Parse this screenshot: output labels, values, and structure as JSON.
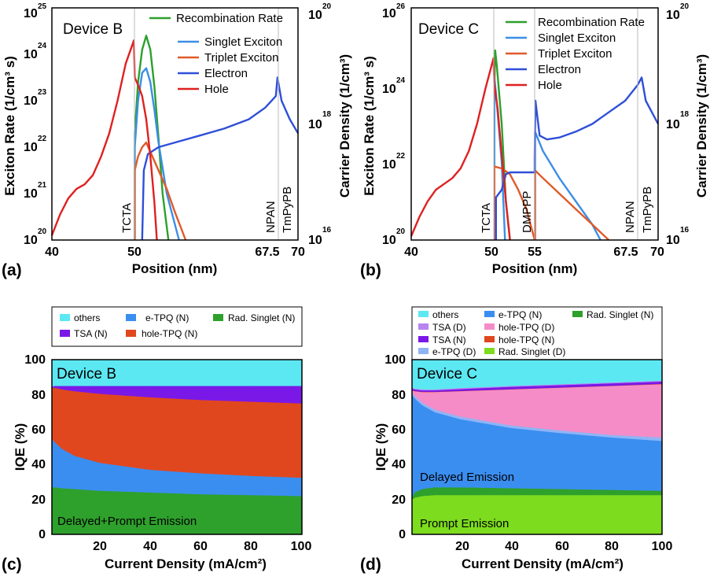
{
  "chart_data": [
    {
      "panel": "(a)",
      "type": "line",
      "title": "Device B",
      "xlabel": "Position (nm)",
      "ylabel_left": "Exciton Rate (1/cm³ s)",
      "ylabel_right": "Carrier Density (1/cm³)",
      "x_ticks": [
        "40",
        "50",
        "67.5",
        "70"
      ],
      "y_left_ticks": [
        {
          "base": "10",
          "exp": "20"
        },
        {
          "base": "10",
          "exp": "21"
        },
        {
          "base": "10",
          "exp": "22"
        },
        {
          "base": "10",
          "exp": "23"
        },
        {
          "base": "10",
          "exp": "24"
        },
        {
          "base": "10",
          "exp": "25"
        }
      ],
      "y_right_ticks": [
        {
          "base": "10",
          "exp": "16"
        },
        {
          "base": "10",
          "exp": "18"
        },
        {
          "base": "10",
          "exp": "20"
        }
      ],
      "layer_labels": [
        "TCTA",
        "NPAN",
        "TmPyPB"
      ],
      "legend": [
        "Recombination Rate",
        "Singlet Exciton",
        "Triplet Exciton",
        "Electron",
        "Hole"
      ],
      "series": [
        {
          "name": "Recombination Rate",
          "color": "#2ca02c",
          "points": [
            [
              50.1,
              20
            ],
            [
              50.1,
              22.3
            ],
            [
              50.5,
              23.4
            ],
            [
              51,
              24.1
            ],
            [
              51.5,
              24.4
            ],
            [
              52,
              24.1
            ],
            [
              52.5,
              23.3
            ],
            [
              53,
              22.2
            ],
            [
              53.5,
              21
            ],
            [
              54.2,
              20
            ]
          ]
        },
        {
          "name": "Singlet Exciton",
          "color": "#3b8ee6",
          "points": [
            [
              50.1,
              20
            ],
            [
              50.1,
              22
            ],
            [
              50.5,
              23
            ],
            [
              51,
              23.6
            ],
            [
              51.5,
              23.7
            ],
            [
              52,
              23.4
            ],
            [
              52.5,
              22.8
            ],
            [
              53,
              22.1
            ],
            [
              54,
              21
            ],
            [
              55.5,
              20
            ]
          ]
        },
        {
          "name": "Triplet Exciton",
          "color": "#e05a2a",
          "points": [
            [
              50.1,
              20
            ],
            [
              50.1,
              21.5
            ],
            [
              50.5,
              21.8
            ],
            [
              51,
              22
            ],
            [
              51.5,
              22.1
            ],
            [
              52,
              21.9
            ],
            [
              53,
              21.5
            ],
            [
              54,
              21.1
            ],
            [
              55,
              20.6
            ],
            [
              56.3,
              20
            ]
          ]
        },
        {
          "name": "Electron",
          "color": "#2f4fd8",
          "points": [
            [
              51,
              20
            ],
            [
              51.2,
              21.5
            ],
            [
              51.7,
              21.85
            ],
            [
              53,
              22
            ],
            [
              55,
              22.1
            ],
            [
              58,
              22.25
            ],
            [
              61,
              22.4
            ],
            [
              64,
              22.6
            ],
            [
              66,
              22.85
            ],
            [
              67.3,
              23.1
            ],
            [
              67.5,
              23.5
            ],
            [
              68,
              23.0
            ],
            [
              69,
              22.6
            ],
            [
              70,
              22.3
            ]
          ]
        },
        {
          "name": "Hole",
          "color": "#e02020",
          "points": [
            [
              40,
              20.1
            ],
            [
              41,
              20.55
            ],
            [
              42,
              20.9
            ],
            [
              43,
              21.1
            ],
            [
              44,
              21.2
            ],
            [
              45,
              21.4
            ],
            [
              46,
              21.8
            ],
            [
              47,
              22.3
            ],
            [
              48,
              23.0
            ],
            [
              49,
              23.8
            ],
            [
              50,
              24.3
            ],
            [
              50.1,
              23.5
            ],
            [
              50.6,
              23.3
            ],
            [
              51,
              23.1
            ],
            [
              51.5,
              22.6
            ],
            [
              52,
              21.8
            ],
            [
              52.5,
              20.8
            ],
            [
              52.8,
              20
            ]
          ]
        }
      ]
    },
    {
      "panel": "(b)",
      "type": "line",
      "title": "Device C",
      "xlabel": "Position (nm)",
      "ylabel_left": "Exciton Rate (1/cm³ s)",
      "ylabel_right": "Carrier Density (1/cm³)",
      "x_ticks": [
        "40",
        "50",
        "55",
        "67.5",
        "70"
      ],
      "y_left_ticks": [
        {
          "base": "10",
          "exp": "20"
        },
        {
          "base": "10",
          "exp": "22"
        },
        {
          "base": "10",
          "exp": "24"
        },
        {
          "base": "10",
          "exp": "26"
        }
      ],
      "y_right_ticks": [
        {
          "base": "10",
          "exp": "16"
        },
        {
          "base": "10",
          "exp": "18"
        },
        {
          "base": "10",
          "exp": "20"
        }
      ],
      "layer_labels": [
        "TCTA",
        "DMPPP",
        "NPAN",
        "TmPyPB"
      ],
      "legend": [
        "Recombination Rate",
        "Singlet Exciton",
        "Triplet Exciton",
        "Electron",
        "Hole"
      ],
      "series": [
        {
          "name": "Recombination Rate",
          "color": "#2ca02c",
          "points": [
            [
              50.1,
              20
            ],
            [
              50.1,
              24.0
            ],
            [
              50.2,
              24.9
            ],
            [
              50.4,
              24.5
            ],
            [
              51,
              23.0
            ],
            [
              51.5,
              21.0
            ],
            [
              52,
              20
            ]
          ]
        },
        {
          "name": "Singlet Exciton",
          "color": "#3b8ee6",
          "points": [
            [
              50.1,
              20
            ],
            [
              50.1,
              24.2
            ],
            [
              50.3,
              23.8
            ],
            [
              51,
              22.0
            ],
            [
              51.4,
              20
            ]
          ]
        },
        {
          "name": "Singlet Exciton (C2)",
          "color": "#3b8ee6",
          "points": [
            [
              55.05,
              20
            ],
            [
              55.05,
              22.8
            ],
            [
              56,
              22.3
            ],
            [
              58,
              21.6
            ],
            [
              60,
              21.0
            ],
            [
              62,
              20.4
            ],
            [
              63,
              20
            ]
          ]
        },
        {
          "name": "Triplet Exciton",
          "color": "#e05a2a",
          "points": [
            [
              50.1,
              20
            ],
            [
              50.1,
              21.9
            ],
            [
              51,
              21.85
            ],
            [
              52,
              21.7
            ],
            [
              53,
              21.3
            ],
            [
              54,
              20.8
            ],
            [
              55,
              20
            ]
          ]
        },
        {
          "name": "Triplet Exciton (C2)",
          "color": "#e05a2a",
          "points": [
            [
              55.05,
              20
            ],
            [
              55.05,
              21.8
            ],
            [
              56,
              21.6
            ],
            [
              58,
              21.2
            ],
            [
              60,
              20.8
            ],
            [
              62,
              20.4
            ],
            [
              64,
              20
            ]
          ]
        },
        {
          "name": "Electron",
          "color": "#2f4fd8",
          "points": [
            [
              50.3,
              20
            ],
            [
              50.3,
              21.1
            ],
            [
              51,
              21.3
            ],
            [
              51.5,
              21.7
            ],
            [
              52,
              21.75
            ],
            [
              55,
              21.75
            ],
            [
              55,
              22.1
            ],
            [
              55.1,
              23.6
            ],
            [
              55.6,
              22.7
            ],
            [
              56.5,
              22.6
            ],
            [
              58,
              22.65
            ],
            [
              60,
              22.8
            ],
            [
              62,
              23.0
            ],
            [
              64,
              23.3
            ],
            [
              66,
              23.6
            ],
            [
              67.5,
              24.0
            ],
            [
              68,
              24.2
            ],
            [
              68.5,
              23.6
            ],
            [
              69.5,
              23.2
            ],
            [
              70,
              23.0
            ]
          ]
        },
        {
          "name": "Hole",
          "color": "#e02020",
          "points": [
            [
              40,
              20.1
            ],
            [
              41,
              20.6
            ],
            [
              42,
              21.0
            ],
            [
              43,
              21.3
            ],
            [
              44,
              21.45
            ],
            [
              45,
              21.6
            ],
            [
              46,
              21.85
            ],
            [
              47,
              22.3
            ],
            [
              48,
              23.0
            ],
            [
              49,
              23.9
            ],
            [
              50,
              24.7
            ],
            [
              50.1,
              24.0
            ],
            [
              50.5,
              23.4
            ],
            [
              51,
              22.2
            ],
            [
              51.5,
              21.0
            ],
            [
              52,
              20
            ]
          ]
        }
      ]
    },
    {
      "panel": "(c)",
      "type": "area",
      "stacked": true,
      "title": "Device B",
      "annotation": "Delayed+Prompt Emission",
      "xlabel": "Current Density (mA/cm²)",
      "ylabel": "IQE (%)",
      "x_ticks": [
        "20",
        "40",
        "60",
        "80",
        "100"
      ],
      "y_ticks": [
        "0",
        "20",
        "40",
        "60",
        "80",
        "100"
      ],
      "ylim": [
        0,
        100
      ],
      "x": [
        1,
        2,
        5,
        10,
        20,
        40,
        60,
        80,
        100
      ],
      "layers": [
        {
          "name": "Rad. Singlet (N)",
          "color": "#2ea02c",
          "upper": [
            27,
            27,
            26.5,
            26,
            25,
            24,
            23,
            22.5,
            22
          ]
        },
        {
          "name": "e-TPQ (N)",
          "color": "#3a8ef0",
          "upper": [
            55,
            53,
            49,
            45,
            41,
            37,
            35,
            33.5,
            32.5
          ]
        },
        {
          "name": "hole-TPQ (N)",
          "color": "#e0471f",
          "upper": [
            84,
            84,
            83,
            82,
            80.5,
            78.5,
            77,
            76,
            75
          ]
        },
        {
          "name": "TSA (N)",
          "color": "#7a18e8",
          "upper": [
            84.5,
            85,
            85,
            85,
            85,
            85,
            85,
            85,
            85
          ]
        },
        {
          "name": "others",
          "color": "#5ce8f2",
          "upper": [
            100,
            100,
            100,
            100,
            100,
            100,
            100,
            100,
            100
          ]
        }
      ],
      "legend": [
        "others",
        "e-TPQ (N)",
        "Rad. Singlet (N)",
        "TSA (N)",
        "hole-TPQ (N)"
      ]
    },
    {
      "panel": "(d)",
      "type": "area",
      "stacked": true,
      "title": "Device C",
      "annotations": [
        "Delayed Emission",
        "Prompt Emission"
      ],
      "xlabel": "Current Density (mA/cm²)",
      "ylabel": "IQE (%)",
      "x_ticks": [
        "20",
        "40",
        "60",
        "80",
        "100"
      ],
      "y_ticks": [
        "0",
        "20",
        "40",
        "60",
        "80",
        "100"
      ],
      "ylim": [
        0,
        100
      ],
      "x": [
        1,
        2,
        5,
        10,
        20,
        40,
        60,
        80,
        100
      ],
      "layers": [
        {
          "name": "Rad. Singlet (D)",
          "color": "#7ddc1e",
          "upper": [
            20,
            21,
            22,
            22.5,
            22.5,
            22.5,
            22.5,
            22.5,
            22.5
          ]
        },
        {
          "name": "Rad. Singlet (N)",
          "color": "#2ea02c",
          "upper": [
            21,
            24,
            26,
            27,
            27,
            26.5,
            26,
            25.5,
            25
          ]
        },
        {
          "name": "e-TPQ (N)",
          "color": "#3a8ef0",
          "upper": [
            80,
            78,
            74,
            70,
            66,
            61,
            58,
            55.5,
            53.5
          ]
        },
        {
          "name": "e-TPQ (D)",
          "color": "#8fb4f5",
          "upper": [
            81,
            79.5,
            75.5,
            71.5,
            67.5,
            62.5,
            59.5,
            57,
            55.5
          ]
        },
        {
          "name": "hole-TPQ (D)",
          "color": "#f58cc8",
          "upper": [
            82.5,
            82,
            81.5,
            81.5,
            82,
            83,
            84,
            85,
            86
          ]
        },
        {
          "name": "hole-TPQ (N)",
          "color": "#e0471f",
          "upper": [
            82.6,
            82.1,
            81.6,
            81.6,
            82.1,
            83.1,
            84.1,
            85.1,
            86.2
          ]
        },
        {
          "name": "TSA (N)",
          "color": "#7a18e8",
          "upper": [
            83.5,
            83,
            82.5,
            82.5,
            83.2,
            84.5,
            85.5,
            86.5,
            87.5
          ]
        },
        {
          "name": "TSA (D)",
          "color": "#b884f0",
          "upper": [
            84,
            83.5,
            83,
            83,
            83.8,
            85,
            86,
            87,
            88
          ]
        },
        {
          "name": "others",
          "color": "#5ce8f2",
          "upper": [
            100,
            100,
            100,
            100,
            100,
            100,
            100,
            100,
            100
          ]
        }
      ],
      "legend": [
        "others",
        "e-TPQ (N)",
        "Rad. Singlet (N)",
        "TSA (D)",
        "hole-TPQ (D)",
        "TSA (N)",
        "hole-TPQ (N)",
        "e-TPQ (D)",
        "Rad. Singlet (D)"
      ]
    }
  ]
}
